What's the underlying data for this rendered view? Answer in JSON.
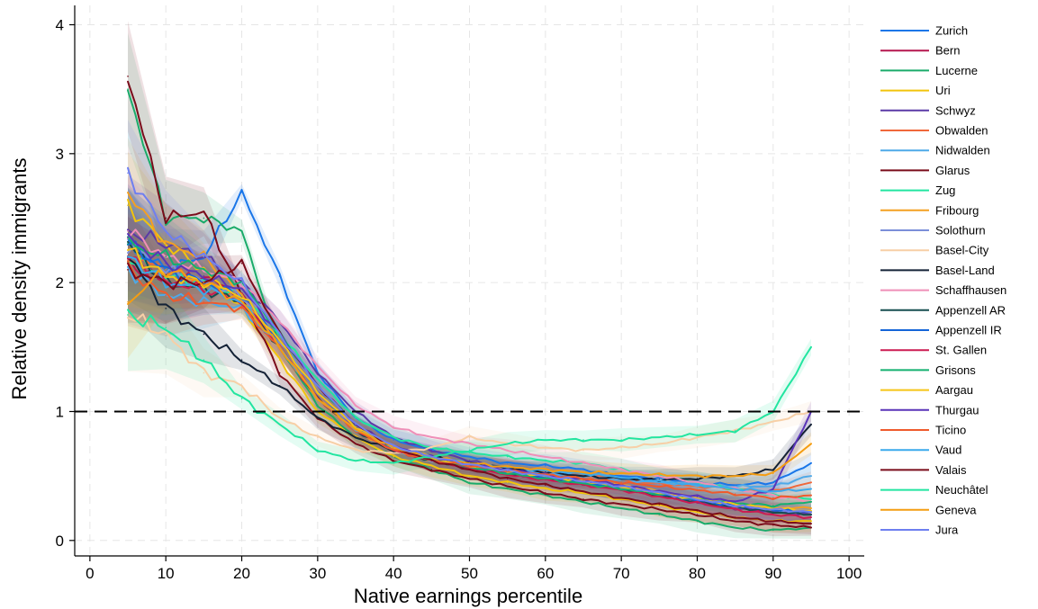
{
  "chart_data": {
    "type": "line",
    "xlabel": "Native earnings percentile",
    "ylabel": "Relative density immigrants",
    "xlim": [
      -2,
      102
    ],
    "ylim": [
      -0.12,
      4.15
    ],
    "xticks": [
      0,
      10,
      20,
      30,
      40,
      50,
      60,
      70,
      80,
      90,
      100
    ],
    "yticks": [
      0,
      1,
      2,
      3,
      4
    ],
    "x_tick_labels": [
      "0",
      "10",
      "20",
      "30",
      "40",
      "50",
      "60",
      "70",
      "80",
      "90",
      "100"
    ],
    "y_tick_labels": [
      "0",
      "1",
      "2",
      "3",
      "4"
    ],
    "grid": true,
    "legend_position": "right",
    "reference_line": {
      "y": 1,
      "style": "dashed",
      "color": "#000000"
    },
    "x": [
      5,
      10,
      15,
      20,
      25,
      30,
      35,
      40,
      45,
      50,
      55,
      60,
      65,
      70,
      75,
      80,
      85,
      90,
      95
    ],
    "series": [
      {
        "name": "Zurich",
        "color": "#1a76e8",
        "values": [
          2.3,
          2.1,
          2.2,
          2.7,
          2.05,
          1.3,
          0.95,
          0.78,
          0.7,
          0.65,
          0.6,
          0.58,
          0.55,
          0.5,
          0.48,
          0.45,
          0.43,
          0.45,
          0.6
        ]
      },
      {
        "name": "Bern",
        "color": "#b5174f",
        "values": [
          2.15,
          2.0,
          2.05,
          1.9,
          1.5,
          1.1,
          0.85,
          0.7,
          0.62,
          0.57,
          0.52,
          0.48,
          0.44,
          0.4,
          0.35,
          0.3,
          0.25,
          0.22,
          0.2
        ]
      },
      {
        "name": "Lucerne",
        "color": "#1aab6a",
        "values": [
          3.5,
          2.5,
          2.5,
          2.4,
          1.5,
          1.05,
          0.8,
          0.65,
          0.55,
          0.45,
          0.4,
          0.35,
          0.3,
          0.25,
          0.2,
          0.15,
          0.1,
          0.08,
          0.1
        ]
      },
      {
        "name": "Uri",
        "color": "#f2c40c",
        "values": [
          2.6,
          2.3,
          2.1,
          1.8,
          1.4,
          1.0,
          0.8,
          0.65,
          0.58,
          0.5,
          0.45,
          0.4,
          0.37,
          0.32,
          0.27,
          0.22,
          0.18,
          0.15,
          0.15
        ]
      },
      {
        "name": "Schwyz",
        "color": "#5b3aa6",
        "values": [
          2.4,
          2.3,
          2.2,
          2.0,
          1.7,
          1.3,
          1.0,
          0.8,
          0.7,
          0.62,
          0.55,
          0.5,
          0.46,
          0.42,
          0.36,
          0.3,
          0.25,
          0.22,
          0.2
        ]
      },
      {
        "name": "Obwalden",
        "color": "#f0683a",
        "values": [
          2.2,
          2.1,
          2.0,
          1.9,
          1.5,
          1.1,
          0.85,
          0.7,
          0.62,
          0.58,
          0.55,
          0.52,
          0.5,
          0.47,
          0.44,
          0.42,
          0.4,
          0.38,
          0.45
        ]
      },
      {
        "name": "Nidwalden",
        "color": "#4ea9e8",
        "values": [
          2.1,
          1.9,
          1.85,
          1.8,
          1.5,
          1.1,
          0.85,
          0.7,
          0.62,
          0.58,
          0.55,
          0.52,
          0.5,
          0.47,
          0.45,
          0.43,
          0.42,
          0.42,
          0.5
        ]
      },
      {
        "name": "Glarus",
        "color": "#7a0c1b",
        "values": [
          3.6,
          2.5,
          2.55,
          1.9,
          1.3,
          0.95,
          0.75,
          0.62,
          0.55,
          0.48,
          0.42,
          0.37,
          0.32,
          0.28,
          0.24,
          0.2,
          0.15,
          0.12,
          0.1
        ]
      },
      {
        "name": "Zug",
        "color": "#22e5a0",
        "values": [
          2.2,
          2.05,
          2.0,
          1.9,
          1.6,
          1.25,
          0.95,
          0.8,
          0.72,
          0.68,
          0.65,
          0.62,
          0.6,
          0.55,
          0.5,
          0.45,
          0.4,
          0.35,
          0.32
        ]
      },
      {
        "name": "Fribourg",
        "color": "#f4a021",
        "values": [
          2.7,
          2.3,
          2.2,
          1.9,
          1.5,
          1.1,
          0.85,
          0.7,
          0.62,
          0.57,
          0.53,
          0.5,
          0.47,
          0.43,
          0.38,
          0.33,
          0.28,
          0.25,
          0.25
        ]
      },
      {
        "name": "Solothurn",
        "color": "#7b8fd9",
        "values": [
          2.3,
          2.1,
          2.0,
          1.9,
          1.55,
          1.15,
          0.87,
          0.7,
          0.62,
          0.57,
          0.53,
          0.5,
          0.46,
          0.42,
          0.37,
          0.32,
          0.27,
          0.24,
          0.22
        ]
      },
      {
        "name": "Basel-City",
        "color": "#f7cfa6",
        "values": [
          1.75,
          1.6,
          1.3,
          1.2,
          0.95,
          0.8,
          0.7,
          0.68,
          0.72,
          0.8,
          0.75,
          0.72,
          0.7,
          0.72,
          0.75,
          0.8,
          0.85,
          0.92,
          1.0
        ]
      },
      {
        "name": "Basel-Land",
        "color": "#142236",
        "values": [
          2.2,
          1.8,
          1.6,
          1.4,
          1.2,
          0.95,
          0.8,
          0.7,
          0.65,
          0.6,
          0.56,
          0.53,
          0.5,
          0.48,
          0.47,
          0.48,
          0.5,
          0.55,
          0.9
        ]
      },
      {
        "name": "Schaffhausen",
        "color": "#ef8fb8",
        "values": [
          2.4,
          2.2,
          2.1,
          2.0,
          1.7,
          1.35,
          1.05,
          0.88,
          0.8,
          0.75,
          0.7,
          0.65,
          0.6,
          0.55,
          0.5,
          0.45,
          0.4,
          0.35,
          0.3
        ]
      },
      {
        "name": "Appenzell AR",
        "color": "#174f50",
        "values": [
          2.3,
          2.0,
          1.95,
          1.85,
          1.5,
          1.1,
          0.85,
          0.7,
          0.62,
          0.56,
          0.52,
          0.48,
          0.44,
          0.4,
          0.35,
          0.3,
          0.26,
          0.22,
          0.2
        ]
      },
      {
        "name": "Appenzell IR",
        "color": "#1565d8",
        "values": [
          2.3,
          2.1,
          2.0,
          1.9,
          1.55,
          1.15,
          0.88,
          0.72,
          0.64,
          0.58,
          0.53,
          0.49,
          0.45,
          0.41,
          0.36,
          0.31,
          0.27,
          0.24,
          0.22
        ]
      },
      {
        "name": "St. Gallen",
        "color": "#cc1c52",
        "values": [
          2.2,
          2.0,
          1.95,
          1.85,
          1.5,
          1.1,
          0.86,
          0.7,
          0.62,
          0.56,
          0.51,
          0.47,
          0.43,
          0.39,
          0.34,
          0.29,
          0.24,
          0.2,
          0.18
        ]
      },
      {
        "name": "Grisons",
        "color": "#14b070",
        "values": [
          2.3,
          2.2,
          2.1,
          2.0,
          1.6,
          1.2,
          0.9,
          0.72,
          0.63,
          0.57,
          0.52,
          0.48,
          0.44,
          0.4,
          0.36,
          0.32,
          0.29,
          0.27,
          0.3
        ]
      },
      {
        "name": "Aargau",
        "color": "#f5c518",
        "values": [
          2.25,
          2.05,
          2.0,
          1.9,
          1.55,
          1.15,
          0.88,
          0.72,
          0.64,
          0.58,
          0.54,
          0.5,
          0.46,
          0.42,
          0.37,
          0.32,
          0.28,
          0.25,
          0.23
        ]
      },
      {
        "name": "Thurgau",
        "color": "#5a34b8",
        "values": [
          2.35,
          2.15,
          2.05,
          1.95,
          1.6,
          1.2,
          0.9,
          0.73,
          0.65,
          0.59,
          0.55,
          0.51,
          0.47,
          0.43,
          0.38,
          0.34,
          0.3,
          0.4,
          1.0
        ]
      },
      {
        "name": "Ticino",
        "color": "#ef5a2c",
        "values": [
          2.1,
          1.9,
          1.85,
          1.8,
          1.5,
          1.1,
          0.85,
          0.7,
          0.62,
          0.58,
          0.54,
          0.51,
          0.48,
          0.45,
          0.42,
          0.39,
          0.36,
          0.33,
          0.35
        ]
      },
      {
        "name": "Vaud",
        "color": "#3aa9ec",
        "values": [
          2.2,
          2.0,
          1.95,
          1.85,
          1.5,
          1.1,
          0.86,
          0.72,
          0.65,
          0.6,
          0.57,
          0.54,
          0.52,
          0.49,
          0.46,
          0.43,
          0.4,
          0.38,
          0.4
        ]
      },
      {
        "name": "Valais",
        "color": "#7a0c1b",
        "values": [
          2.1,
          2.0,
          2.0,
          2.15,
          1.6,
          1.2,
          0.9,
          0.72,
          0.62,
          0.55,
          0.48,
          0.43,
          0.38,
          0.33,
          0.28,
          0.23,
          0.18,
          0.15,
          0.13
        ]
      },
      {
        "name": "Neuchâtel",
        "color": "#22e5a0",
        "values": [
          1.75,
          1.65,
          1.4,
          1.1,
          0.9,
          0.7,
          0.62,
          0.6,
          0.65,
          0.7,
          0.75,
          0.78,
          0.78,
          0.78,
          0.8,
          0.82,
          0.85,
          1.0,
          1.5
        ]
      },
      {
        "name": "Geneva",
        "color": "#f49d12",
        "values": [
          1.85,
          2.1,
          2.0,
          1.85,
          1.5,
          1.1,
          0.86,
          0.72,
          0.65,
          0.6,
          0.57,
          0.55,
          0.53,
          0.52,
          0.51,
          0.5,
          0.5,
          0.52,
          0.75
        ]
      },
      {
        "name": "Jura",
        "color": "#6e7ff0",
        "values": [
          2.85,
          2.4,
          2.2,
          2.0,
          1.6,
          1.2,
          0.9,
          0.73,
          0.65,
          0.59,
          0.54,
          0.5,
          0.46,
          0.42,
          0.37,
          0.32,
          0.27,
          0.24,
          0.22
        ]
      }
    ]
  }
}
